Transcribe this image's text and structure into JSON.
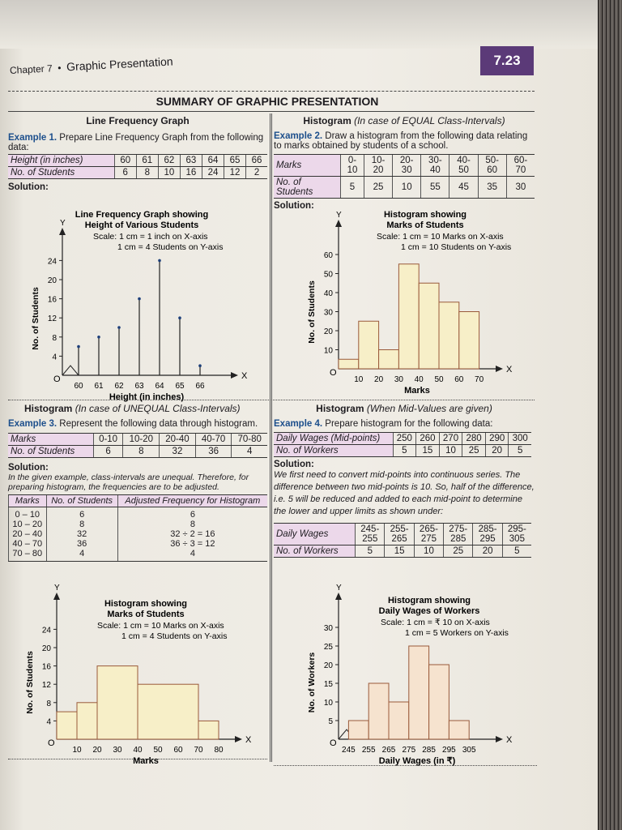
{
  "header": {
    "chapter": "Chapter 7",
    "bullet": "•",
    "section": "Graphic Presentation",
    "page_number": "7.23",
    "accent": "#5b3a78"
  },
  "title": "SUMMARY OF GRAPHIC PRESENTATION",
  "ex1": {
    "heading": "Line Frequency Graph",
    "example": "Example 1.",
    "text": "Prepare Line Frequency Graph from the following data:",
    "row_labels": [
      "Height (in inches)",
      "No. of Students"
    ],
    "x": [
      "60",
      "61",
      "62",
      "63",
      "64",
      "65",
      "66"
    ],
    "y": [
      "6",
      "8",
      "10",
      "16",
      "24",
      "12",
      "2"
    ],
    "solution": "Solution:"
  },
  "ex2": {
    "heading": "Histogram",
    "heading_note": "(In case of EQUAL Class-Intervals)",
    "example": "Example 2.",
    "text": "Draw a histogram from the following data relating to marks obtained by students of a school.",
    "row_labels": [
      "Marks",
      "No. of Students"
    ],
    "x": [
      "0-10",
      "10-20",
      "20-30",
      "30-40",
      "40-50",
      "50-60",
      "60-70"
    ],
    "y": [
      "5",
      "25",
      "10",
      "55",
      "45",
      "35",
      "30"
    ],
    "solution": "Solution:"
  },
  "ex3": {
    "heading": "Histogram",
    "heading_note": "(In case of UNEQUAL Class-Intervals)",
    "example": "Example 3.",
    "text": "Represent the following data through histogram.",
    "row_labels": [
      "Marks",
      "No. of Students"
    ],
    "x": [
      "0-10",
      "10-20",
      "20-40",
      "40-70",
      "70-80"
    ],
    "y": [
      "6",
      "8",
      "32",
      "36",
      "4"
    ],
    "solution": "Solution:",
    "note": "In the given example, class-intervals are unequal. Therefore, for preparing histogram, the frequencies are to be adjusted.",
    "adj_headers": [
      "Marks",
      "No. of Students",
      "Adjusted Frequency for Histogram"
    ],
    "adj_rows": [
      [
        "0 – 10",
        "6",
        "6"
      ],
      [
        "10 – 20",
        "8",
        "8"
      ],
      [
        "20 – 40",
        "32",
        "32 ÷ 2 = 16"
      ],
      [
        "40 – 70",
        "36",
        "36 ÷ 3 = 12"
      ],
      [
        "70 – 80",
        "4",
        "4"
      ]
    ]
  },
  "ex4": {
    "heading": "Histogram",
    "heading_note": "(When Mid-Values are given)",
    "example": "Example 4.",
    "text": "Prepare histogram for the following data:",
    "row_labels": [
      "Daily Wages (Mid-points)",
      "No. of Workers"
    ],
    "x": [
      "250",
      "260",
      "270",
      "280",
      "290",
      "300"
    ],
    "y": [
      "5",
      "15",
      "10",
      "25",
      "20",
      "5"
    ],
    "solution": "Solution:",
    "note": "We first need to convert mid-points into continuous series. The difference between two mid-points is 10. So, half of the difference, i.e. 5 will be reduced and added to each mid-point to determine the lower and upper limits as shown under:",
    "row_labels2": [
      "Daily Wages",
      "No. of Workers"
    ],
    "x2": [
      "245-\n255",
      "255-\n265",
      "265-\n275",
      "275-\n285",
      "285-\n295",
      "295-\n305"
    ],
    "y2": [
      "5",
      "15",
      "10",
      "25",
      "20",
      "5"
    ]
  },
  "chart_data": [
    {
      "type": "line",
      "title": "Line Frequency Graph showing Height of Various Students",
      "scale": [
        "Scale: 1 cm = 1 inch on X-axis",
        "1 cm = 4 Students on Y-axis"
      ],
      "xlabel": "Height (in inches)",
      "ylabel": "No. of Students",
      "x": [
        60,
        61,
        62,
        63,
        64,
        65,
        66
      ],
      "values": [
        6,
        8,
        10,
        16,
        24,
        12,
        2
      ],
      "yticks": [
        4,
        8,
        12,
        16,
        20,
        24
      ],
      "xticks": [
        60,
        61,
        62,
        63,
        64,
        65,
        66
      ],
      "ylim": [
        0,
        28
      ],
      "axis_letters": [
        "X",
        "Y",
        "O"
      ],
      "color": "#1d1b1f"
    },
    {
      "type": "bar",
      "title": "Histogram showing Marks of Students",
      "scale": [
        "Scale: 1 cm = 10 Marks on X-axis",
        "1 cm = 10 Students on Y-axis"
      ],
      "xlabel": "Marks",
      "ylabel": "No. of Students",
      "bins": [
        [
          0,
          10
        ],
        [
          10,
          20
        ],
        [
          20,
          30
        ],
        [
          30,
          40
        ],
        [
          40,
          50
        ],
        [
          50,
          60
        ],
        [
          60,
          70
        ]
      ],
      "values": [
        5,
        25,
        10,
        55,
        45,
        35,
        30
      ],
      "xticks": [
        10,
        20,
        30,
        40,
        50,
        60,
        70
      ],
      "yticks": [
        10,
        20,
        30,
        40,
        50,
        60
      ],
      "ylim": [
        0,
        70
      ],
      "axis_letters": [
        "X",
        "Y",
        "O"
      ],
      "color": "#f7efc8"
    },
    {
      "type": "bar",
      "title": "Histogram showing Marks of Students",
      "scale": [
        "Scale: 1 cm = 10 Marks on X-axis",
        "1 cm = 4 Students on Y-axis"
      ],
      "xlabel": "Marks",
      "ylabel": "No. of Students",
      "bins": [
        [
          0,
          10
        ],
        [
          10,
          20
        ],
        [
          20,
          40
        ],
        [
          40,
          70
        ],
        [
          70,
          80
        ]
      ],
      "values": [
        6,
        8,
        16,
        12,
        4
      ],
      "xticks": [
        10,
        20,
        30,
        40,
        50,
        60,
        70,
        80
      ],
      "yticks": [
        4,
        8,
        12,
        16,
        20,
        24
      ],
      "ylim": [
        0,
        28
      ],
      "axis_letters": [
        "X",
        "Y",
        "O"
      ],
      "color": "#f7efc8"
    },
    {
      "type": "bar",
      "title": "Histogram showing Daily Wages of Workers",
      "scale": [
        "Scale: 1 cm = ₹ 10 on X-axis",
        "1 cm = 5 Workers on Y-axis"
      ],
      "xlabel": "Daily Wages (in ₹)",
      "ylabel": "No. of Workers",
      "bins": [
        [
          245,
          255
        ],
        [
          255,
          265
        ],
        [
          265,
          275
        ],
        [
          275,
          285
        ],
        [
          285,
          295
        ],
        [
          295,
          305
        ]
      ],
      "values": [
        5,
        15,
        10,
        25,
        20,
        5
      ],
      "xticks": [
        245,
        255,
        265,
        275,
        285,
        295,
        305
      ],
      "yticks": [
        5,
        10,
        15,
        20,
        25,
        30
      ],
      "ylim": [
        0,
        35
      ],
      "axis_letters": [
        "X",
        "Y",
        "O"
      ],
      "color": "#f6e3cf"
    }
  ]
}
